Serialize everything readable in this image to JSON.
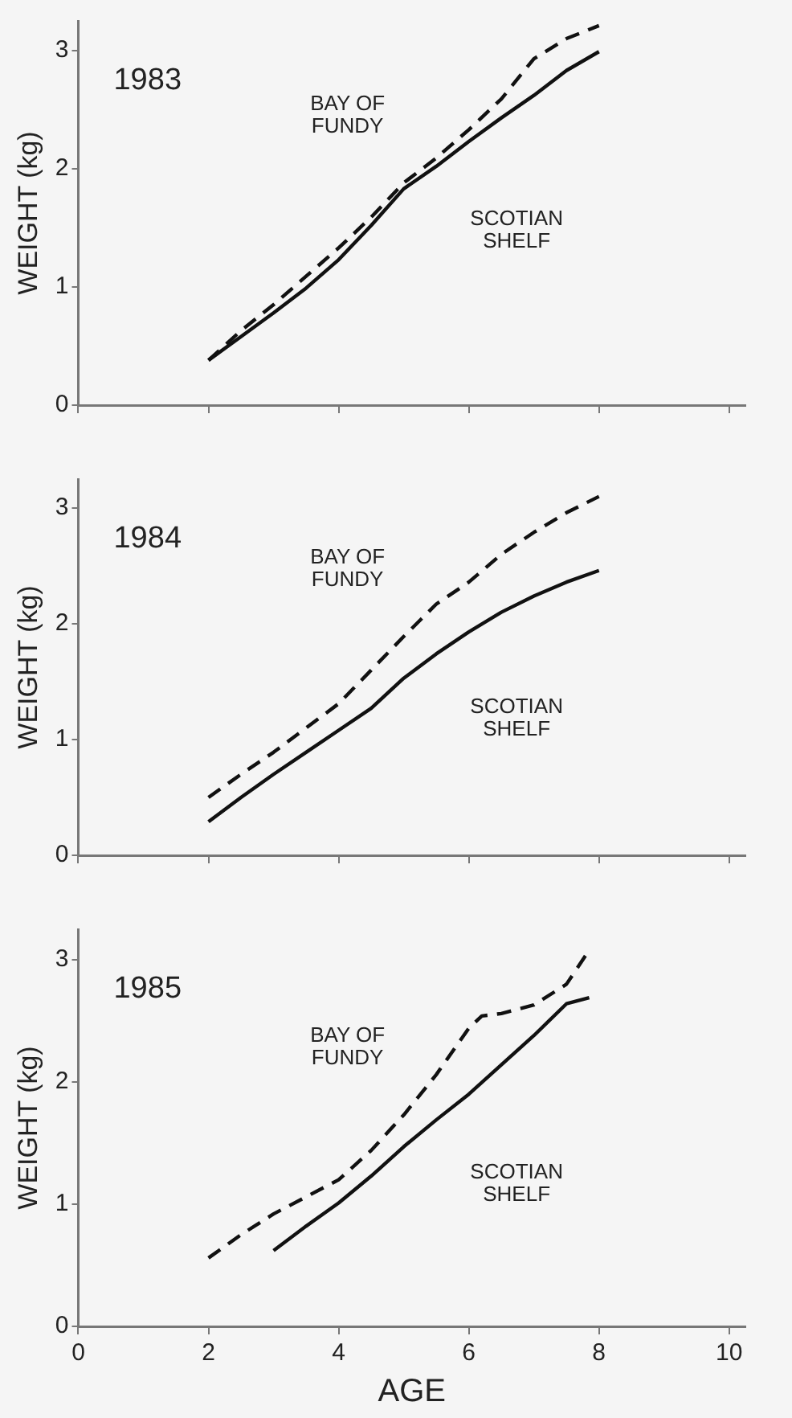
{
  "chart_data": [
    {
      "type": "line",
      "title": "1983",
      "ylabel": "WEIGHT (kg)",
      "xlim": [
        0,
        10.25
      ],
      "xticks": [
        0,
        2,
        4,
        6,
        8,
        10
      ],
      "ylim": [
        0,
        3.25
      ],
      "yticks": [
        0,
        1,
        2,
        3
      ],
      "grid": false,
      "legend": false,
      "tick_labels": "y",
      "series": [
        {
          "name": "BAY OF FUNDY",
          "color": "#111111",
          "line_style": "dashed",
          "x": [
            2,
            2.5,
            3,
            3.5,
            4,
            4.5,
            5,
            5.5,
            6,
            6.5,
            7,
            7.5,
            8
          ],
          "values": [
            0.38,
            0.63,
            0.85,
            1.09,
            1.33,
            1.59,
            1.88,
            2.09,
            2.33,
            2.59,
            2.93,
            3.1,
            3.21
          ]
        },
        {
          "name": "SCOTIAN SHELF",
          "color": "#111111",
          "line_style": "solid",
          "x": [
            2,
            2.5,
            3,
            3.5,
            4,
            4.5,
            5,
            5.5,
            6,
            6.5,
            7,
            7.5,
            8
          ],
          "values": [
            0.38,
            0.58,
            0.78,
            0.99,
            1.23,
            1.52,
            1.83,
            2.02,
            2.23,
            2.43,
            2.62,
            2.83,
            2.99
          ]
        }
      ]
    },
    {
      "type": "line",
      "title": "1984",
      "ylabel": "WEIGHT (kg)",
      "xlim": [
        0,
        10.25
      ],
      "xticks": [
        0,
        2,
        4,
        6,
        8,
        10
      ],
      "ylim": [
        0,
        3.25
      ],
      "yticks": [
        0,
        1,
        2,
        3
      ],
      "grid": false,
      "legend": false,
      "tick_labels": "y",
      "series": [
        {
          "name": "BAY OF FUNDY",
          "color": "#111111",
          "line_style": "dashed",
          "x": [
            2,
            2.5,
            3,
            3.5,
            4,
            4.5,
            5,
            5.5,
            6,
            6.5,
            7,
            7.5,
            8
          ],
          "values": [
            0.5,
            0.7,
            0.89,
            1.1,
            1.31,
            1.6,
            1.89,
            2.17,
            2.36,
            2.6,
            2.79,
            2.96,
            3.1
          ]
        },
        {
          "name": "SCOTIAN SHELF",
          "color": "#111111",
          "line_style": "solid",
          "x": [
            2,
            2.5,
            3,
            3.5,
            4,
            4.5,
            5,
            5.5,
            6,
            6.5,
            7,
            7.5,
            8
          ],
          "values": [
            0.29,
            0.5,
            0.7,
            0.89,
            1.08,
            1.27,
            1.53,
            1.74,
            1.93,
            2.1,
            2.24,
            2.36,
            2.46
          ]
        }
      ]
    },
    {
      "type": "line",
      "title": "1985",
      "xlabel": "AGE",
      "ylabel": "WEIGHT (kg)",
      "xlim": [
        0,
        10.25
      ],
      "xticks": [
        0,
        2,
        4,
        6,
        8,
        10
      ],
      "ylim": [
        0,
        3.25
      ],
      "yticks": [
        0,
        1,
        2,
        3
      ],
      "grid": false,
      "legend": false,
      "series": [
        {
          "name": "BAY OF FUNDY",
          "color": "#111111",
          "line_style": "dashed",
          "x": [
            2,
            2.5,
            3,
            3.5,
            4,
            4.5,
            5,
            5.5,
            6,
            6.2,
            6.5,
            7,
            7.5,
            7.8
          ],
          "values": [
            0.56,
            0.75,
            0.92,
            1.06,
            1.2,
            1.44,
            1.73,
            2.06,
            2.44,
            2.54,
            2.56,
            2.63,
            2.8,
            3.04
          ]
        },
        {
          "name": "SCOTIAN SHELF",
          "color": "#111111",
          "line_style": "solid",
          "x": [
            3,
            3.5,
            4,
            4.5,
            5,
            5.5,
            6,
            6.5,
            7,
            7.5,
            7.85
          ],
          "values": [
            0.62,
            0.82,
            1.01,
            1.23,
            1.47,
            1.69,
            1.9,
            2.14,
            2.38,
            2.64,
            2.69
          ]
        }
      ]
    }
  ]
}
